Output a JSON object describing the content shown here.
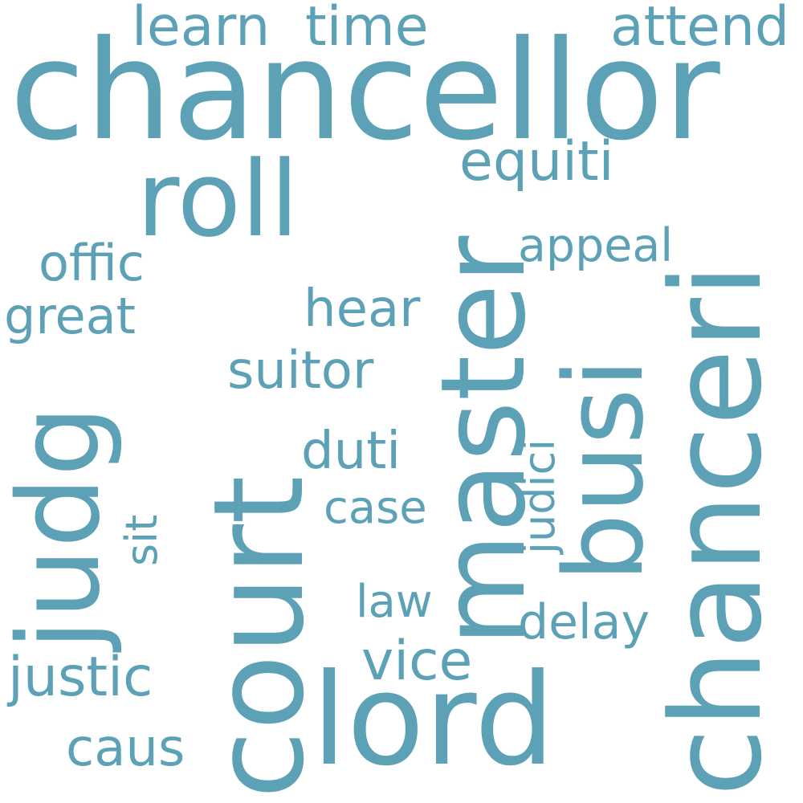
{
  "accent_color": "#5da1b7",
  "words": {
    "chancellor": "chancellor",
    "court": "court",
    "master": "master",
    "chanceri": "chanceri",
    "busi": "busi",
    "roll": "roll",
    "lord": "lord",
    "judg": "judg",
    "learn": "learn",
    "time": "time",
    "attend": "attend",
    "equiti": "equiti",
    "appeal": "appeal",
    "offic": "offic",
    "great": "great",
    "hear": "hear",
    "suitor": "suitor",
    "duti": "duti",
    "judici": "judici",
    "sit": "sit",
    "case": "case",
    "law": "law",
    "delay": "delay",
    "vice": "vice",
    "justic": "justic",
    "caus": "caus"
  }
}
